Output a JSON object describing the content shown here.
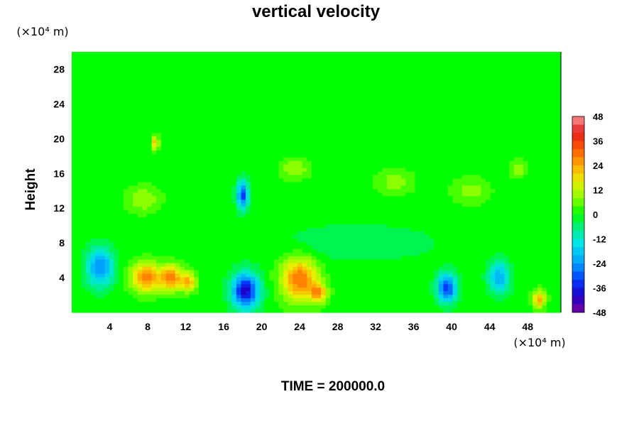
{
  "chart_data": {
    "type": "heatmap",
    "title": "vertical velocity",
    "xlabel": "",
    "ylabel": "Height",
    "x_unit": "(×10⁴ m)",
    "y_unit": "(×10⁴ m)",
    "xlim": [
      0,
      51.5
    ],
    "ylim": [
      0,
      30
    ],
    "x_ticks": [
      4,
      8,
      12,
      16,
      20,
      24,
      28,
      32,
      36,
      40,
      44,
      48
    ],
    "y_ticks": [
      4,
      8,
      12,
      16,
      20,
      24,
      28
    ],
    "colorbar": {
      "min": -48,
      "max": 48,
      "step": 4,
      "ticks": [
        48,
        36,
        24,
        12,
        0,
        -12,
        -24,
        -36,
        -48
      ]
    },
    "background_value": 0,
    "features": [
      {
        "x": 3.0,
        "y": 5.2,
        "value": -26,
        "rx": 1.4,
        "ry": 2.2
      },
      {
        "x": 7.8,
        "y": 4.0,
        "value": 28,
        "rx": 1.6,
        "ry": 1.7
      },
      {
        "x": 10.5,
        "y": 4.0,
        "value": 26,
        "rx": 1.2,
        "ry": 1.5
      },
      {
        "x": 12.3,
        "y": 3.5,
        "value": 22,
        "rx": 0.8,
        "ry": 1.1
      },
      {
        "x": 18.3,
        "y": 2.5,
        "value": -40,
        "rx": 1.4,
        "ry": 2.0
      },
      {
        "x": 24.0,
        "y": 3.8,
        "value": 30,
        "rx": 1.9,
        "ry": 2.5
      },
      {
        "x": 26.0,
        "y": 2.2,
        "value": 22,
        "rx": 0.9,
        "ry": 1.1
      },
      {
        "x": 39.5,
        "y": 2.8,
        "value": -34,
        "rx": 1.0,
        "ry": 1.6
      },
      {
        "x": 45.0,
        "y": 4.0,
        "value": -22,
        "rx": 1.1,
        "ry": 1.8
      },
      {
        "x": 49.2,
        "y": 1.5,
        "value": 24,
        "rx": 0.7,
        "ry": 1.0
      },
      {
        "x": 18.0,
        "y": 13.5,
        "value": -32,
        "rx": 0.6,
        "ry": 1.6
      },
      {
        "x": 8.8,
        "y": 19.5,
        "value": 22,
        "rx": 0.4,
        "ry": 0.8
      },
      {
        "x": 7.5,
        "y": 13.0,
        "value": 10,
        "rx": 1.8,
        "ry": 1.5
      },
      {
        "x": 23.5,
        "y": 16.5,
        "value": 10,
        "rx": 1.5,
        "ry": 1.2
      },
      {
        "x": 34.0,
        "y": 15.0,
        "value": 8,
        "rx": 2.0,
        "ry": 1.5
      },
      {
        "x": 42.0,
        "y": 14.0,
        "value": 8,
        "rx": 2.0,
        "ry": 1.5
      },
      {
        "x": 47.0,
        "y": 16.5,
        "value": 10,
        "rx": 0.8,
        "ry": 1.0
      },
      {
        "x": 30.0,
        "y": 8.0,
        "value": -6,
        "rx": 8.0,
        "ry": 2.0
      }
    ],
    "time_label": "TIME = 200000.0"
  }
}
